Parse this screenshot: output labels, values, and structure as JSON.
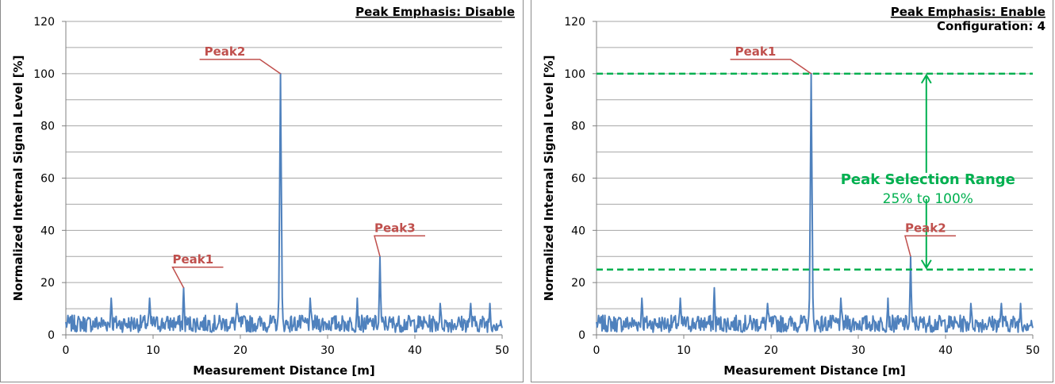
{
  "chart_data": [
    {
      "type": "line",
      "header": "Peak Emphasis: Disable",
      "header2": "",
      "xlabel": "Measurement  Distance [m]",
      "ylabel": "Normalized  Internal  Signal  Level [%]",
      "xlim": [
        0,
        50
      ],
      "ylim": [
        0,
        120
      ],
      "xticks": [
        "0",
        "10",
        "20",
        "30",
        "40",
        "50"
      ],
      "yticks": [
        "0",
        "20",
        "40",
        "60",
        "80",
        "100",
        "120"
      ],
      "grid": true,
      "series": [
        {
          "color": "#4f81bd",
          "noise_level": 4,
          "spikes": [
            [
              5.2,
              14
            ],
            [
              9.6,
              14
            ],
            [
              13.5,
              18
            ],
            [
              19.6,
              12
            ],
            [
              24.6,
              100
            ],
            [
              28.0,
              14
            ],
            [
              33.4,
              14
            ],
            [
              36.0,
              30
            ],
            [
              42.9,
              12
            ],
            [
              46.4,
              12
            ],
            [
              48.6,
              12
            ]
          ]
        }
      ],
      "peak_labels": [
        {
          "label": "Peak1",
          "x": 13.5,
          "y": 18
        },
        {
          "label": "Peak2",
          "x": 24.6,
          "y": 100
        },
        {
          "label": "Peak3",
          "x": 36.0,
          "y": 30
        }
      ]
    },
    {
      "type": "line",
      "header": "Peak Emphasis: Enable",
      "header2": "Configuration: 4",
      "xlabel": "Measurement  Distance [m]",
      "ylabel": "Normalized  Internal  Signal  Level [%]",
      "xlim": [
        0,
        50
      ],
      "ylim": [
        0,
        120
      ],
      "xticks": [
        "0",
        "10",
        "20",
        "30",
        "40",
        "50"
      ],
      "yticks": [
        "0",
        "20",
        "40",
        "60",
        "80",
        "100",
        "120"
      ],
      "grid": true,
      "series": [
        {
          "color": "#4f81bd",
          "noise_level": 4,
          "spikes": [
            [
              5.2,
              14
            ],
            [
              9.6,
              14
            ],
            [
              13.5,
              18
            ],
            [
              19.6,
              12
            ],
            [
              24.6,
              100
            ],
            [
              28.0,
              14
            ],
            [
              33.4,
              14
            ],
            [
              36.0,
              30
            ],
            [
              42.9,
              12
            ],
            [
              46.4,
              12
            ],
            [
              48.6,
              12
            ]
          ]
        }
      ],
      "peak_labels": [
        {
          "label": "Peak1",
          "x": 24.6,
          "y": 100
        },
        {
          "label": "Peak2",
          "x": 36.0,
          "y": 30
        }
      ],
      "threshold_lines": [
        100,
        25
      ],
      "range_annotation": {
        "title": "Peak Selection Range",
        "subtitle": "25% to 100%",
        "color": "#00b050",
        "x": 37.8
      }
    }
  ]
}
